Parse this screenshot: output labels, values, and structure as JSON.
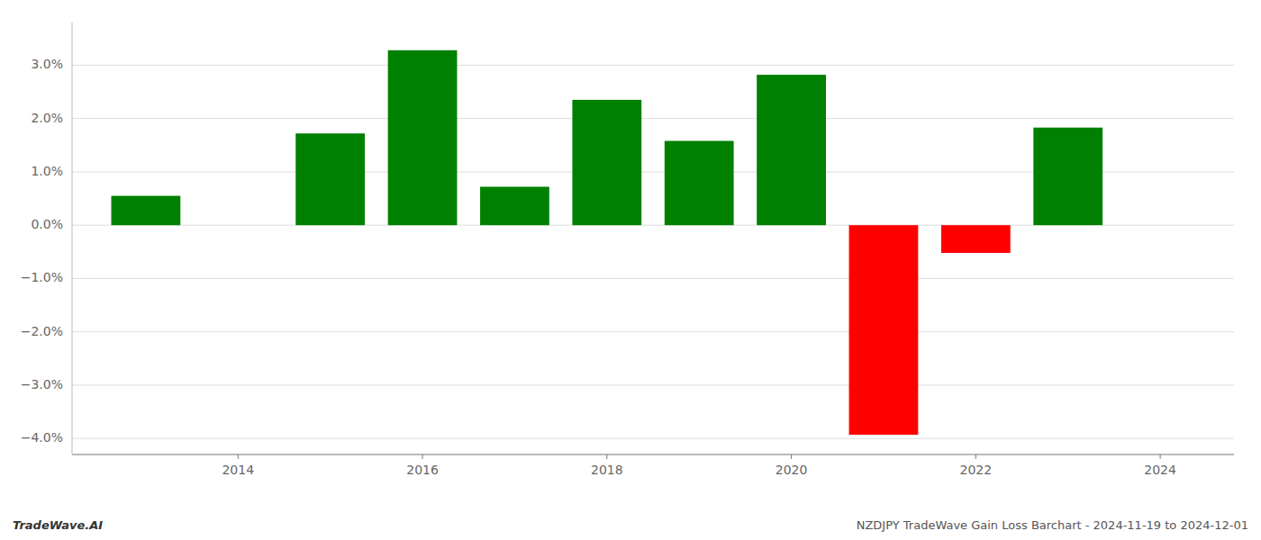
{
  "chart_data": {
    "type": "bar",
    "x": [
      2013,
      2015,
      2016,
      2017,
      2018,
      2019,
      2020,
      2021,
      2022,
      2023
    ],
    "values": [
      0.0055,
      0.0172,
      0.0328,
      0.0072,
      0.0235,
      0.0158,
      0.0282,
      -0.0393,
      -0.0052,
      0.0183
    ],
    "colors": [
      "#008000",
      "#008000",
      "#008000",
      "#008000",
      "#008000",
      "#008000",
      "#008000",
      "#ff0000",
      "#ff0000",
      "#008000"
    ],
    "xlim": [
      2012.2,
      2024.8
    ],
    "xticks": [
      2014,
      2016,
      2018,
      2020,
      2022,
      2024
    ],
    "ylim": [
      -0.043,
      0.038
    ],
    "yticks": [
      {
        "value": -0.04,
        "label": "−4.0%"
      },
      {
        "value": -0.03,
        "label": "−3.0%"
      },
      {
        "value": -0.02,
        "label": "−2.0%"
      },
      {
        "value": -0.01,
        "label": "−1.0%"
      },
      {
        "value": 0,
        "label": "0.0%"
      },
      {
        "value": 0.01,
        "label": "1.0%"
      },
      {
        "value": 0.02,
        "label": "2.0%"
      },
      {
        "value": 0.03,
        "label": "3.0%"
      }
    ],
    "grid": true,
    "annotations": [
      "TradeWave.AI",
      "NZDJPY TradeWave Gain Loss Barchart - 2024-11-19 to 2024-12-01"
    ]
  }
}
